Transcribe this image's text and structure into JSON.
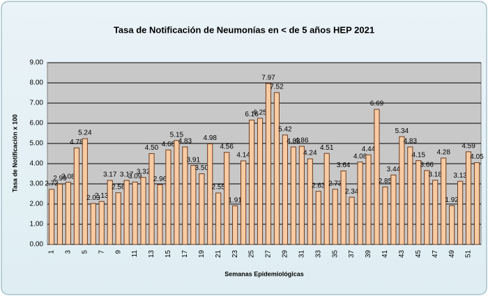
{
  "chart_data": {
    "type": "bar",
    "title": "Tasa de Notificación de Neumonías en < de 5 años HEP 2021",
    "x_label": "Semanas Epidemiológicas",
    "y_label": "Tasa de Notificación x 100",
    "categories": [
      "1",
      null,
      "3",
      null,
      "5",
      null,
      "7",
      null,
      "9",
      null,
      "11",
      null,
      "13",
      null,
      "15",
      null,
      "17",
      null,
      "19",
      null,
      "21",
      null,
      "23",
      null,
      "25",
      null,
      "27",
      null,
      "29",
      null,
      "31",
      null,
      "33",
      null,
      "35",
      null,
      "37",
      null,
      "39",
      null,
      "41",
      null,
      "43",
      null,
      "45",
      null,
      "47",
      null,
      "49",
      null,
      "51",
      null
    ],
    "values": [
      2.73,
      2.99,
      3.08,
      4.78,
      5.24,
      2.03,
      2.13,
      3.17,
      2.56,
      3.17,
      3.09,
      3.32,
      4.5,
      2.96,
      4.68,
      5.15,
      4.83,
      3.91,
      3.5,
      4.98,
      2.55,
      4.56,
      1.91,
      4.14,
      6.16,
      6.25,
      7.97,
      7.52,
      5.42,
      4.83,
      4.86,
      4.24,
      2.63,
      4.51,
      2.73,
      3.64,
      2.34,
      4.08,
      4.44,
      6.69,
      2.85,
      3.44,
      5.34,
      4.83,
      4.15,
      3.66,
      3.18,
      4.28,
      1.92,
      3.13,
      4.59,
      4.05
    ],
    "value_labels": [
      "2.73",
      "2.99",
      "3.08",
      "4.78",
      "5.24",
      "2.03",
      "2.13",
      "3.17",
      "2.56",
      "3.17",
      "3.09",
      "3.32",
      "4.50",
      "2.96",
      "4.68",
      "5.15",
      "4.83",
      "3.91",
      "3.50",
      "4.98",
      "2.55",
      "4.56",
      "1.91",
      "4.14",
      "6.16",
      "6.25",
      "7.97",
      "7.52",
      "5.42",
      "4.83",
      "4.86",
      "4.24",
      "2.63",
      "4.51",
      "2.73",
      "3.64",
      "2.34",
      "4.08",
      "4.44",
      "6.69",
      "2.85",
      "3.44",
      "5.34",
      "4.83",
      "4.15",
      "3.66",
      "3.18",
      "4.28",
      "1.92",
      "3.13",
      "4.59",
      "4.05"
    ],
    "color": "#f9cba3",
    "ylim": [
      0,
      9
    ],
    "yticks": [
      {
        "value": 0,
        "label": "0.00"
      },
      {
        "value": 1,
        "label": "1.00"
      },
      {
        "value": 2,
        "label": "2.00"
      },
      {
        "value": 3,
        "label": "3.00"
      },
      {
        "value": 4,
        "label": "4.00"
      },
      {
        "value": 5,
        "label": "5.00"
      },
      {
        "value": 6,
        "label": "6.00"
      },
      {
        "value": 7,
        "label": "7.00"
      },
      {
        "value": 8,
        "label": "8.00"
      },
      {
        "value": 9,
        "label": "9.00"
      }
    ],
    "grid": true
  }
}
